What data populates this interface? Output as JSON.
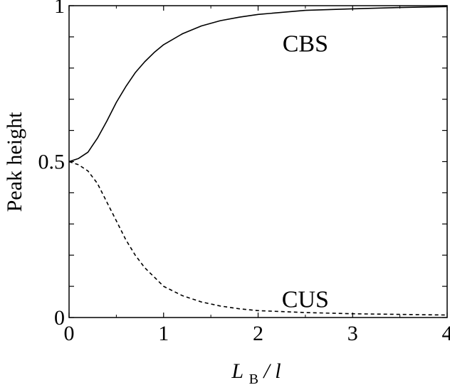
{
  "chart_data": {
    "type": "line",
    "xlabel": {
      "main": "L",
      "sub": "B",
      "rest": "/ l"
    },
    "ylabel": "Peak height",
    "xlim": [
      0,
      4
    ],
    "ylim": [
      0,
      1
    ],
    "xticks": [
      0,
      1,
      2,
      3,
      4
    ],
    "xtick_labels": [
      "0",
      "1",
      "2",
      "3",
      "4"
    ],
    "yticks": [
      0,
      0.5,
      1
    ],
    "ytick_labels": [
      "0",
      "0.5",
      "1"
    ],
    "grid": false,
    "series": [
      {
        "name": "CBS",
        "style": "solid",
        "x": [
          0,
          0.1,
          0.2,
          0.3,
          0.4,
          0.5,
          0.6,
          0.7,
          0.8,
          0.9,
          1.0,
          1.2,
          1.4,
          1.6,
          1.8,
          2.0,
          2.5,
          3.0,
          3.5,
          4.0
        ],
        "y": [
          0.5,
          0.51,
          0.53,
          0.575,
          0.63,
          0.69,
          0.74,
          0.785,
          0.82,
          0.85,
          0.875,
          0.91,
          0.935,
          0.952,
          0.963,
          0.972,
          0.985,
          0.99,
          0.994,
          0.997
        ]
      },
      {
        "name": "CUS",
        "style": "dashed",
        "x": [
          0,
          0.1,
          0.2,
          0.3,
          0.4,
          0.5,
          0.6,
          0.7,
          0.8,
          0.9,
          1.0,
          1.2,
          1.4,
          1.6,
          1.8,
          2.0,
          2.5,
          3.0,
          3.5,
          4.0
        ],
        "y": [
          0.5,
          0.49,
          0.47,
          0.43,
          0.37,
          0.31,
          0.25,
          0.2,
          0.16,
          0.13,
          0.1,
          0.07,
          0.05,
          0.037,
          0.028,
          0.022,
          0.016,
          0.012,
          0.01,
          0.008
        ]
      }
    ],
    "annotations": [
      {
        "text": "CBS",
        "x": 2.5,
        "y": 0.88
      },
      {
        "text": "CUS",
        "x": 2.5,
        "y": 0.06
      }
    ]
  }
}
